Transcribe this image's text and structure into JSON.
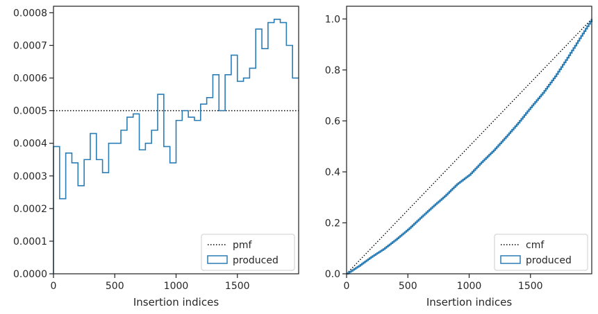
{
  "colors": {
    "series": "#2a7cb5",
    "reference": "#000000",
    "axis": "#262626",
    "legend_border": "#cccccc"
  },
  "chart_data": [
    {
      "type": "line",
      "subtype": "step-histogram",
      "xlabel": "Insertion indices",
      "ylabel": "",
      "xlim": [
        0,
        2000
      ],
      "ylim": [
        0,
        0.00082
      ],
      "xticks": [
        0,
        500,
        1000,
        1500
      ],
      "xtick_labels": [
        "0",
        "500",
        "1000",
        "1500"
      ],
      "yticks": [
        0,
        0.0001,
        0.0002,
        0.0003,
        0.0004,
        0.0005,
        0.0006,
        0.0007,
        0.0008
      ],
      "ytick_labels": [
        "0.0000",
        "0.0001",
        "0.0002",
        "0.0003",
        "0.0004",
        "0.0005",
        "0.0006",
        "0.0007",
        "0.0008"
      ],
      "grid": false,
      "legend_position": "lower-right",
      "bin_width": 50,
      "series": [
        {
          "name": "pmf",
          "style": "dotted",
          "x": [
            0,
            2000
          ],
          "y": [
            0.0005,
            0.0005
          ]
        },
        {
          "name": "produced",
          "style": "step",
          "bin_edges_start": 0,
          "values": [
            0.00039,
            0.00023,
            0.00037,
            0.00034,
            0.00027,
            0.00035,
            0.00043,
            0.00035,
            0.00031,
            0.0004,
            0.0004,
            0.00044,
            0.00048,
            0.00049,
            0.00038,
            0.0004,
            0.00044,
            0.00055,
            0.00039,
            0.00034,
            0.00047,
            0.0005,
            0.00048,
            0.00047,
            0.00052,
            0.00054,
            0.00061,
            0.0005,
            0.00061,
            0.00067,
            0.00059,
            0.0006,
            0.00063,
            0.00075,
            0.00069,
            0.00077,
            0.00078,
            0.00077,
            0.0007,
            0.0006
          ]
        }
      ]
    },
    {
      "type": "line",
      "subtype": "cumulative",
      "xlabel": "Insertion indices",
      "ylabel": "",
      "xlim": [
        0,
        2000
      ],
      "ylim": [
        0,
        1.05
      ],
      "xticks": [
        0,
        500,
        1000,
        1500
      ],
      "xtick_labels": [
        "0",
        "500",
        "1000",
        "1500"
      ],
      "yticks": [
        0,
        0.2,
        0.4,
        0.6,
        0.8,
        1.0
      ],
      "ytick_labels": [
        "0.0",
        "0.2",
        "0.4",
        "0.6",
        "0.8",
        "1.0"
      ],
      "grid": false,
      "legend_position": "lower-right",
      "series": [
        {
          "name": "cmf",
          "style": "dotted",
          "x": [
            0,
            2000
          ],
          "y": [
            0,
            1.0
          ]
        },
        {
          "name": "produced",
          "style": "step-cumulative",
          "x": [
            0,
            100,
            200,
            300,
            400,
            500,
            600,
            700,
            800,
            900,
            1000,
            1100,
            1200,
            1300,
            1400,
            1500,
            1600,
            1700,
            1800,
            1900,
            2000
          ],
          "y": [
            0,
            0.031,
            0.066,
            0.097,
            0.134,
            0.174,
            0.219,
            0.263,
            0.305,
            0.352,
            0.388,
            0.438,
            0.485,
            0.538,
            0.593,
            0.653,
            0.71,
            0.775,
            0.848,
            0.924,
            1.0
          ]
        }
      ]
    }
  ]
}
